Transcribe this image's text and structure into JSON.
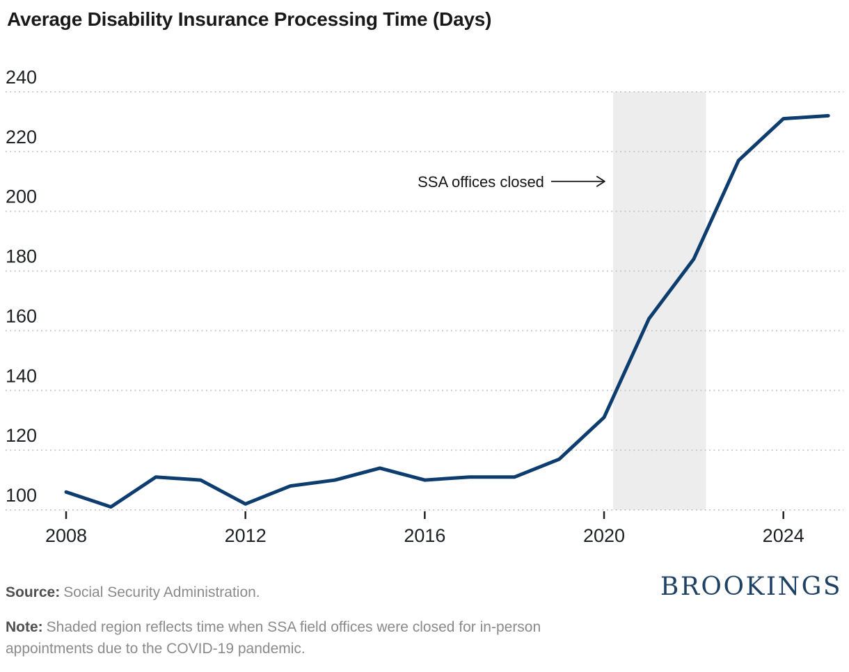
{
  "chart_data": {
    "type": "line",
    "title": "Average Disability Insurance Processing Time (Days)",
    "x": [
      2008,
      2009,
      2010,
      2011,
      2012,
      2013,
      2014,
      2015,
      2016,
      2017,
      2018,
      2019,
      2020,
      2021,
      2022,
      2023,
      2024,
      2025
    ],
    "values": [
      106,
      101,
      111,
      110,
      102,
      108,
      110,
      114,
      110,
      111,
      111,
      117,
      131,
      164,
      184,
      217,
      231,
      232
    ],
    "xlabel": "",
    "ylabel": "",
    "ylim": [
      100,
      240
    ],
    "yticks": [
      240,
      220,
      200,
      180,
      160,
      140,
      120,
      100
    ],
    "xticks": [
      2008,
      2012,
      2016,
      2020,
      2024
    ],
    "grid": "horizontal-dotted",
    "legend_position": "none",
    "line_color": "#0d3d6e",
    "gridline_color": "#c6c6c6",
    "tick_color": "#222222",
    "shaded_region": {
      "x_start": 2020.2,
      "x_end": 2022.27,
      "color": "#ededed"
    },
    "annotation": {
      "text": "SSA offices closed",
      "arrow_direction": "right",
      "y_days": 210
    }
  },
  "footer": {
    "source_label": "Source:",
    "source_text": "Social Security Administration.",
    "note_label": "Note:",
    "note_text": "Shaded region reflects time when SSA field offices were closed for in-person appointments due to the COVID-19 pandemic.",
    "logo": "BROOKINGS"
  }
}
